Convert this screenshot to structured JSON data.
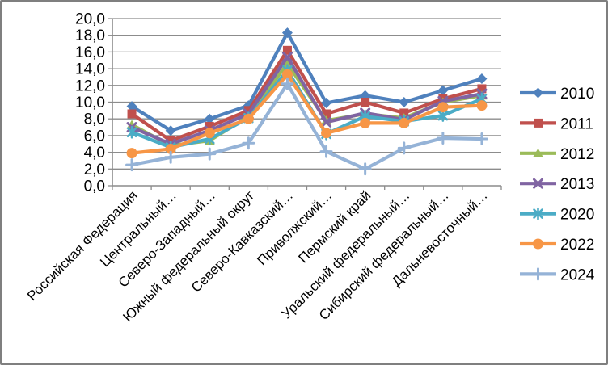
{
  "chart_data": {
    "type": "line",
    "title": "",
    "categories": [
      "Российская Федерация",
      "Центральный…",
      "Северо-Западный…",
      "Южный федеральный округ",
      "Северо-Кавказский…",
      "Приволжский…",
      "Пермский край",
      "Уральский федеральный…",
      "Сибирский федеральный…",
      "Дальневосточный…"
    ],
    "series": [
      {
        "name": "2010",
        "color": "#4F81BD",
        "marker": "diamond",
        "values": [
          9.5,
          6.6,
          8.0,
          9.6,
          18.3,
          9.9,
          10.8,
          10.0,
          11.4,
          12.8
        ]
      },
      {
        "name": "2011",
        "color": "#C0504D",
        "marker": "square",
        "values": [
          8.6,
          5.4,
          7.1,
          9.0,
          16.2,
          8.6,
          10.0,
          8.7,
          10.4,
          11.6
        ]
      },
      {
        "name": "2012",
        "color": "#9BBB59",
        "marker": "triangle",
        "values": [
          7.3,
          4.8,
          5.4,
          8.3,
          14.6,
          7.8,
          8.6,
          8.1,
          10.0,
          10.8
        ]
      },
      {
        "name": "2013",
        "color": "#8064A2",
        "marker": "x",
        "values": [
          7.0,
          5.0,
          6.6,
          8.6,
          15.4,
          7.6,
          8.7,
          7.9,
          10.1,
          11.0
        ]
      },
      {
        "name": "2020",
        "color": "#4BACC6",
        "marker": "asterisk",
        "values": [
          6.4,
          4.6,
          5.6,
          8.1,
          13.8,
          6.2,
          8.3,
          7.7,
          8.4,
          10.4
        ]
      },
      {
        "name": "2022",
        "color": "#F79646",
        "marker": "circle",
        "values": [
          3.9,
          4.4,
          6.3,
          8.0,
          13.3,
          6.3,
          7.5,
          7.5,
          9.4,
          9.6
        ]
      },
      {
        "name": "2024",
        "color": "#95B3D7",
        "marker": "plus",
        "values": [
          2.5,
          3.4,
          3.8,
          5.1,
          12.2,
          4.1,
          2.0,
          4.5,
          5.7,
          5.6
        ]
      }
    ],
    "y_axis": {
      "min": 0,
      "max": 20,
      "step": 2,
      "decimal_separator": ",",
      "tick_labels": [
        "20,0",
        "18,0",
        "16,0",
        "14,0",
        "12,0",
        "10,0",
        "8,0",
        "6,0",
        "4,0",
        "2,0",
        "0,0"
      ]
    },
    "x_axis": {
      "label_rotation_deg": 45
    },
    "legend": {
      "position": "right"
    },
    "grid": true,
    "colors": {
      "gridline": "#8C8C8C",
      "axis": "#8C8C8C",
      "text": "#000000",
      "background": "#FFFFFF",
      "frame_border": "#808080"
    }
  }
}
